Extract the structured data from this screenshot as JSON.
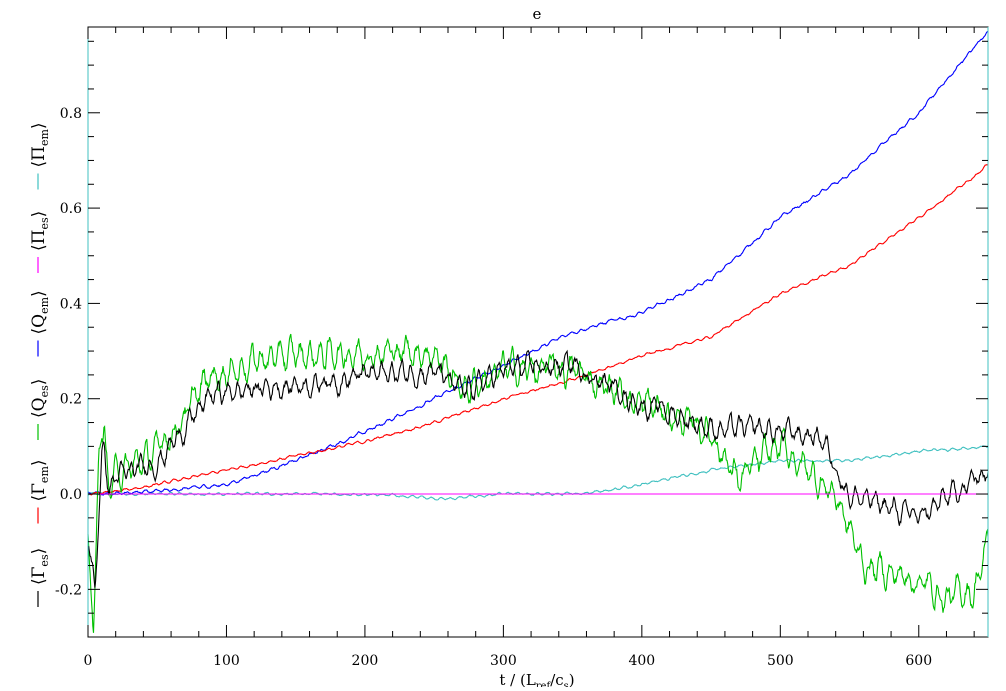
{
  "chart_data": {
    "type": "line",
    "title": "e",
    "xlabel": "t / (L_ref/c_s)",
    "xlabel_parts": {
      "main": "t / (L",
      "sub1": "ref",
      "mid": "/c",
      "sub2": "s",
      "end": ")"
    },
    "ylabel": "",
    "xlim": [
      0,
      650
    ],
    "ylim": [
      -0.3,
      0.98
    ],
    "xticks": [
      0,
      100,
      200,
      300,
      400,
      500,
      600
    ],
    "xtick_labels": [
      "0",
      "100",
      "200",
      "300",
      "400",
      "500",
      "600"
    ],
    "yticks": [
      -0.2,
      0.0,
      0.2,
      0.4,
      0.6,
      0.8
    ],
    "ytick_labels": [
      "-0.2",
      "0.0",
      "0.2",
      "0.4",
      "0.6",
      "0.8"
    ],
    "grid": false,
    "legend_placement": "left, vertical along y-axis",
    "legend": [
      {
        "symbol": "Γ",
        "sub": "es",
        "color": "#000000"
      },
      {
        "symbol": "Γ",
        "sub": "em",
        "color": "#ff0000"
      },
      {
        "symbol": "Q",
        "sub": "es",
        "color": "#00c000"
      },
      {
        "symbol": "Q",
        "sub": "em",
        "color": "#0000ff"
      },
      {
        "symbol": "Π",
        "sub": "es",
        "color": "#ff00ff"
      },
      {
        "symbol": "Π",
        "sub": "em",
        "color": "#40c0c0"
      }
    ],
    "series": [
      {
        "key": "gamma_es",
        "color": "#000000",
        "noise": 0.025,
        "x": [
          0,
          5,
          10,
          12,
          15,
          20,
          30,
          50,
          70,
          90,
          120,
          150,
          200,
          250,
          270,
          300,
          350,
          400,
          450,
          500,
          530,
          550,
          600,
          650
        ],
        "y": [
          -0.1,
          -0.2,
          0.08,
          0.1,
          0.0,
          0.04,
          0.04,
          0.07,
          0.14,
          0.21,
          0.22,
          0.23,
          0.25,
          0.26,
          0.21,
          0.26,
          0.27,
          0.19,
          0.14,
          0.13,
          0.12,
          0.0,
          -0.05,
          0.05
        ]
      },
      {
        "key": "gamma_em",
        "color": "#ff0000",
        "noise": 0.003,
        "x": [
          0,
          20,
          50,
          100,
          150,
          200,
          250,
          300,
          350,
          400,
          450,
          500,
          550,
          600,
          650
        ],
        "y": [
          0.0,
          0.005,
          0.02,
          0.05,
          0.08,
          0.11,
          0.15,
          0.2,
          0.24,
          0.29,
          0.33,
          0.42,
          0.48,
          0.58,
          0.69
        ]
      },
      {
        "key": "q_es",
        "color": "#00c000",
        "noise": 0.035,
        "x": [
          0,
          4,
          8,
          12,
          15,
          20,
          30,
          50,
          70,
          90,
          120,
          150,
          200,
          250,
          270,
          300,
          350,
          400,
          450,
          470,
          500,
          540,
          560,
          600,
          620,
          640,
          650
        ],
        "y": [
          -0.1,
          -0.29,
          0.1,
          0.14,
          0.0,
          0.05,
          0.05,
          0.09,
          0.17,
          0.25,
          0.28,
          0.29,
          0.3,
          0.3,
          0.22,
          0.26,
          0.26,
          0.19,
          0.13,
          0.03,
          0.1,
          0.0,
          -0.15,
          -0.18,
          -0.22,
          -0.2,
          -0.1
        ]
      },
      {
        "key": "q_em",
        "color": "#0000ff",
        "noise": 0.004,
        "x": [
          0,
          50,
          100,
          150,
          200,
          250,
          300,
          350,
          400,
          450,
          500,
          550,
          600,
          650
        ],
        "y": [
          0.0,
          0.005,
          0.02,
          0.07,
          0.13,
          0.2,
          0.27,
          0.34,
          0.38,
          0.45,
          0.58,
          0.67,
          0.8,
          0.97
        ]
      },
      {
        "key": "pi_es",
        "color": "#ff00ff",
        "noise": 0.0,
        "x": [
          0,
          650
        ],
        "y": [
          0.0,
          0.0
        ]
      },
      {
        "key": "pi_em",
        "color": "#40c0c0",
        "noise": 0.003,
        "x": [
          0,
          200,
          260,
          300,
          350,
          380,
          450,
          500,
          550,
          600,
          650
        ],
        "y": [
          0.0,
          0.0,
          -0.01,
          0.0,
          0.0,
          0.01,
          0.05,
          0.07,
          0.07,
          0.09,
          0.1
        ]
      }
    ]
  }
}
